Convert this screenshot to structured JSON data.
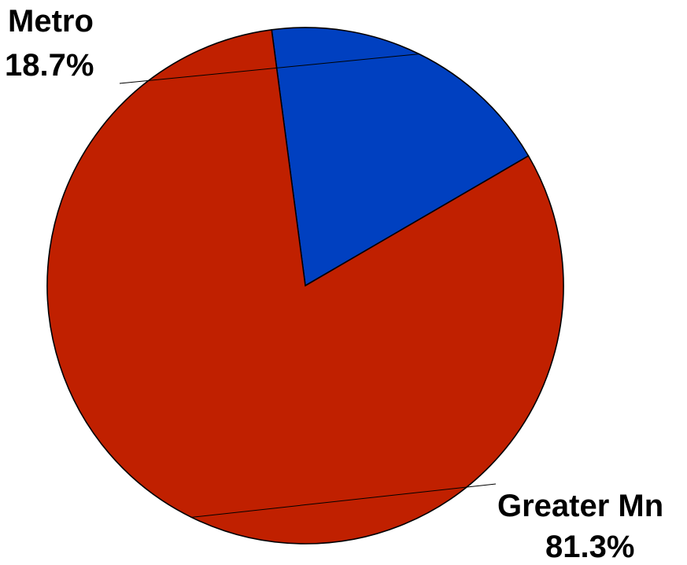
{
  "chart_data": {
    "type": "pie",
    "title": "",
    "slices": [
      {
        "label": "Metro",
        "percent_label": "18.7%",
        "value": 18.7,
        "color": "#0040c0"
      },
      {
        "label": "Greater Mn",
        "percent_label": "81.3%",
        "value": 81.3,
        "color": "#c02000"
      }
    ],
    "legend": "none",
    "label_style": "outside-with-leader-lines"
  }
}
